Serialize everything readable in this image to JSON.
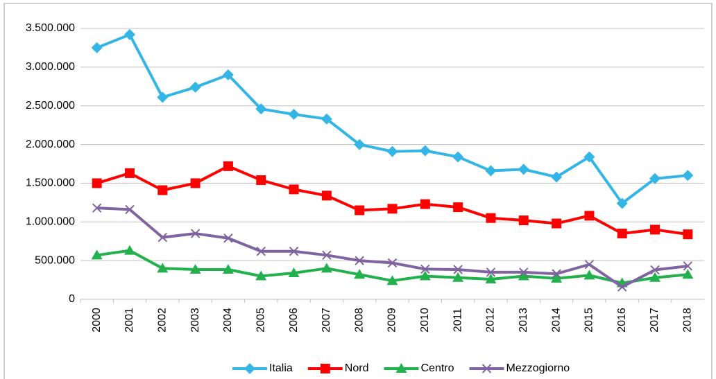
{
  "chart_data": {
    "type": "line",
    "categories": [
      "2000",
      "2001",
      "2002",
      "2003",
      "2004",
      "2005",
      "2006",
      "2007",
      "2008",
      "2009",
      "2010",
      "2011",
      "2012",
      "2013",
      "2014",
      "2015",
      "2016",
      "2017",
      "2018"
    ],
    "series": [
      {
        "name": "Italia",
        "color": "#33b5e5",
        "marker": "diamond",
        "values": [
          3250000,
          3420000,
          2610000,
          2740000,
          2900000,
          2460000,
          2390000,
          2330000,
          2000000,
          1910000,
          1920000,
          1840000,
          1660000,
          1680000,
          1580000,
          1840000,
          1240000,
          1560000,
          1600000
        ]
      },
      {
        "name": "Nord",
        "color": "#ff0000",
        "marker": "square",
        "values": [
          1500000,
          1630000,
          1410000,
          1500000,
          1720000,
          1540000,
          1420000,
          1340000,
          1150000,
          1170000,
          1230000,
          1190000,
          1050000,
          1020000,
          980000,
          1080000,
          850000,
          900000,
          840000
        ]
      },
      {
        "name": "Centro",
        "color": "#22b14c",
        "marker": "triangle",
        "values": [
          570000,
          630000,
          400000,
          385000,
          385000,
          300000,
          340000,
          400000,
          320000,
          240000,
          300000,
          280000,
          260000,
          300000,
          270000,
          310000,
          210000,
          280000,
          320000
        ]
      },
      {
        "name": "Mezzogiorno",
        "color": "#8064a2",
        "marker": "x",
        "values": [
          1180000,
          1160000,
          800000,
          850000,
          790000,
          620000,
          620000,
          570000,
          500000,
          470000,
          390000,
          385000,
          350000,
          350000,
          330000,
          450000,
          160000,
          380000,
          430000
        ]
      }
    ],
    "ylim": [
      0,
      3500000
    ],
    "yticks": [
      0,
      {
        "value": 500000,
        "label": "500.000"
      },
      {
        "value": 1000000,
        "label": "1.000.000"
      },
      {
        "value": 1500000,
        "label": "1.500.000"
      },
      {
        "value": 2000000,
        "label": "2.000.000"
      },
      {
        "value": 2500000,
        "label": "2.500.000"
      },
      {
        "value": 3000000,
        "label": "3.000.000"
      },
      {
        "value": 3500000,
        "label": "3.500.000"
      }
    ],
    "grid": true,
    "legend": "bottom"
  }
}
